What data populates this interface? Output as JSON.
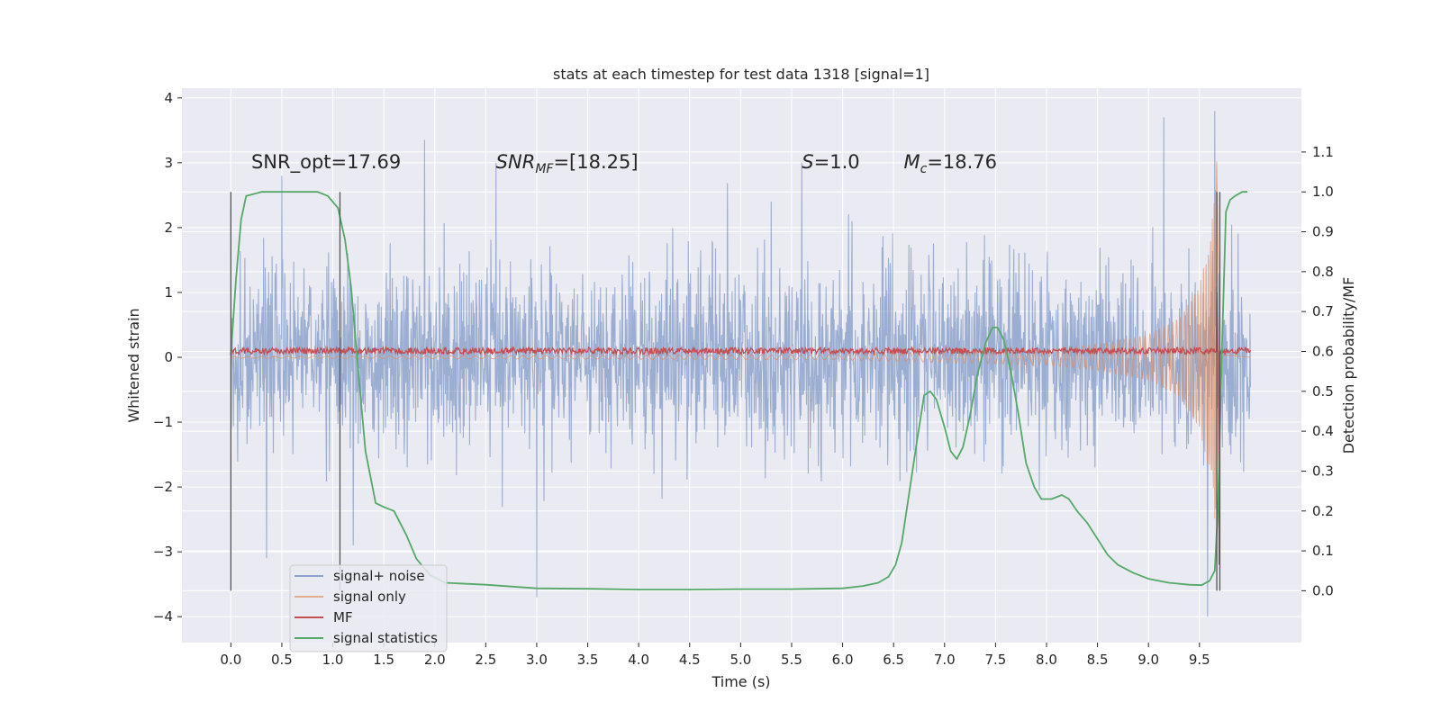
{
  "chart_data": {
    "type": "line",
    "title": "stats at each timestep for test data 1318 [signal=1]",
    "xlabel": "Time (s)",
    "ylabel": "Whitened strain",
    "y2label": "Detection probability/MF",
    "xlim": [
      -0.48,
      10.5
    ],
    "ylim": [
      -4.4,
      4.15
    ],
    "y2lim": [
      -0.13,
      1.26
    ],
    "xticks": [
      0.0,
      0.5,
      1.0,
      1.5,
      2.0,
      2.5,
      3.0,
      3.5,
      4.0,
      4.5,
      5.0,
      5.5,
      6.0,
      6.5,
      7.0,
      7.5,
      8.0,
      8.5,
      9.0,
      9.5
    ],
    "xtick_labels": [
      "0.0",
      "0.5",
      "1.0",
      "1.5",
      "2.0",
      "2.5",
      "3.0",
      "3.5",
      "4.0",
      "4.5",
      "5.0",
      "5.5",
      "6.0",
      "6.5",
      "7.0",
      "7.5",
      "8.0",
      "8.5",
      "9.0",
      "9.5"
    ],
    "yticks": [
      -4,
      -3,
      -2,
      -1,
      0,
      1,
      2,
      3,
      4
    ],
    "ytick_labels": [
      "−4",
      "−3",
      "−2",
      "−1",
      "0",
      "1",
      "2",
      "3",
      "4"
    ],
    "y2ticks": [
      0.0,
      0.1,
      0.2,
      0.3,
      0.4,
      0.5,
      0.6,
      0.7,
      0.8,
      0.9,
      1.0,
      1.1
    ],
    "y2tick_labels": [
      "0.0",
      "0.1",
      "0.2",
      "0.3",
      "0.4",
      "0.5",
      "0.6",
      "0.7",
      "0.8",
      "0.9",
      "1.0",
      "1.1"
    ],
    "grid": true,
    "legend": "lower-left",
    "colors": {
      "background": "#eaeaf2",
      "grid": "#ffffff",
      "noise": "#4c72b0",
      "signal": "#dd8452",
      "mf": "#c44e52",
      "stats": "#55a868",
      "marker": "#555555"
    },
    "annotations": [
      {
        "text": "SNR_opt=17.69",
        "italic": false,
        "x": 0.2,
        "y": 3.0
      },
      {
        "text": "SNR",
        "sub": "MF",
        "suffix": "=[18.25]",
        "italic": true,
        "x": 2.6,
        "y": 3.0
      },
      {
        "text": "S",
        "suffix": "=1.0",
        "italic": true,
        "x": 5.6,
        "y": 3.0
      },
      {
        "text": "M",
        "sub": "c",
        "suffix": "=18.76",
        "italic": true,
        "x": 6.6,
        "y": 3.0
      }
    ],
    "vlines": [
      {
        "x": 0.0,
        "y2": [
          0.0,
          1.0
        ]
      },
      {
        "x": 1.07,
        "y2": [
          0.0,
          1.0
        ]
      },
      {
        "x": 9.67,
        "y2": [
          0.0,
          1.0
        ]
      },
      {
        "x": 9.7,
        "y2": [
          0.0,
          1.0
        ]
      }
    ],
    "series": [
      {
        "name": "signal+ noise",
        "axis": "left",
        "kind": "noise",
        "duration": 10.0,
        "sigma": 0.7,
        "peaks": [
          [
            0.0,
            2.3
          ],
          [
            0.5,
            2.8
          ],
          [
            1.9,
            3.35
          ],
          [
            2.6,
            3.0
          ],
          [
            3.0,
            -3.7
          ],
          [
            5.6,
            3.0
          ],
          [
            9.15,
            3.7
          ],
          [
            9.65,
            3.8
          ],
          [
            9.58,
            -4.0
          ],
          [
            1.2,
            -2.9
          ],
          [
            0.35,
            -3.1
          ]
        ]
      },
      {
        "name": "signal only",
        "axis": "left",
        "kind": "chirp",
        "t_merge": 9.67,
        "env_points": [
          [
            0.0,
            0.01
          ],
          [
            6.0,
            0.04
          ],
          [
            8.0,
            0.12
          ],
          [
            8.5,
            0.2
          ],
          [
            9.0,
            0.35
          ],
          [
            9.3,
            0.6
          ],
          [
            9.5,
            1.1
          ],
          [
            9.6,
            1.8
          ],
          [
            9.65,
            2.5
          ],
          [
            9.67,
            3.6
          ],
          [
            9.7,
            0.05
          ],
          [
            10.0,
            0.0
          ]
        ]
      },
      {
        "name": "MF",
        "axis": "left",
        "kind": "mf",
        "level": 0.1,
        "jitter": 0.05,
        "spikes": [
          [
            9.67,
            1.0
          ],
          [
            9.69,
            -3.2
          ]
        ]
      },
      {
        "name": "signal statistics",
        "axis": "right",
        "kind": "line",
        "points": [
          [
            0.0,
            0.59
          ],
          [
            0.05,
            0.78
          ],
          [
            0.1,
            0.93
          ],
          [
            0.15,
            0.99
          ],
          [
            0.3,
            1.0
          ],
          [
            0.5,
            1.0
          ],
          [
            0.7,
            1.0
          ],
          [
            0.85,
            1.0
          ],
          [
            0.95,
            0.99
          ],
          [
            1.05,
            0.96
          ],
          [
            1.12,
            0.88
          ],
          [
            1.18,
            0.76
          ],
          [
            1.25,
            0.55
          ],
          [
            1.32,
            0.35
          ],
          [
            1.42,
            0.22
          ],
          [
            1.5,
            0.21
          ],
          [
            1.6,
            0.2
          ],
          [
            1.72,
            0.14
          ],
          [
            1.82,
            0.08
          ],
          [
            1.95,
            0.04
          ],
          [
            2.1,
            0.02
          ],
          [
            2.5,
            0.015
          ],
          [
            3.0,
            0.006
          ],
          [
            3.5,
            0.005
          ],
          [
            4.0,
            0.003
          ],
          [
            4.5,
            0.003
          ],
          [
            5.0,
            0.004
          ],
          [
            5.5,
            0.004
          ],
          [
            6.0,
            0.006
          ],
          [
            6.2,
            0.012
          ],
          [
            6.35,
            0.02
          ],
          [
            6.45,
            0.035
          ],
          [
            6.52,
            0.065
          ],
          [
            6.58,
            0.12
          ],
          [
            6.65,
            0.24
          ],
          [
            6.72,
            0.36
          ],
          [
            6.8,
            0.49
          ],
          [
            6.86,
            0.5
          ],
          [
            6.92,
            0.48
          ],
          [
            7.0,
            0.41
          ],
          [
            7.06,
            0.35
          ],
          [
            7.12,
            0.33
          ],
          [
            7.18,
            0.36
          ],
          [
            7.25,
            0.44
          ],
          [
            7.32,
            0.54
          ],
          [
            7.4,
            0.62
          ],
          [
            7.47,
            0.66
          ],
          [
            7.52,
            0.66
          ],
          [
            7.58,
            0.63
          ],
          [
            7.65,
            0.55
          ],
          [
            7.72,
            0.45
          ],
          [
            7.8,
            0.32
          ],
          [
            7.88,
            0.26
          ],
          [
            7.95,
            0.23
          ],
          [
            8.05,
            0.23
          ],
          [
            8.15,
            0.24
          ],
          [
            8.22,
            0.23
          ],
          [
            8.3,
            0.2
          ],
          [
            8.4,
            0.17
          ],
          [
            8.5,
            0.13
          ],
          [
            8.6,
            0.09
          ],
          [
            8.7,
            0.065
          ],
          [
            8.85,
            0.045
          ],
          [
            9.0,
            0.03
          ],
          [
            9.2,
            0.02
          ],
          [
            9.4,
            0.015
          ],
          [
            9.52,
            0.014
          ],
          [
            9.6,
            0.025
          ],
          [
            9.65,
            0.05
          ],
          [
            9.68,
            0.2
          ],
          [
            9.72,
            0.6
          ],
          [
            9.76,
            0.95
          ],
          [
            9.8,
            0.98
          ],
          [
            9.85,
            0.99
          ],
          [
            9.92,
            1.0
          ],
          [
            9.97,
            1.0
          ]
        ]
      }
    ]
  }
}
